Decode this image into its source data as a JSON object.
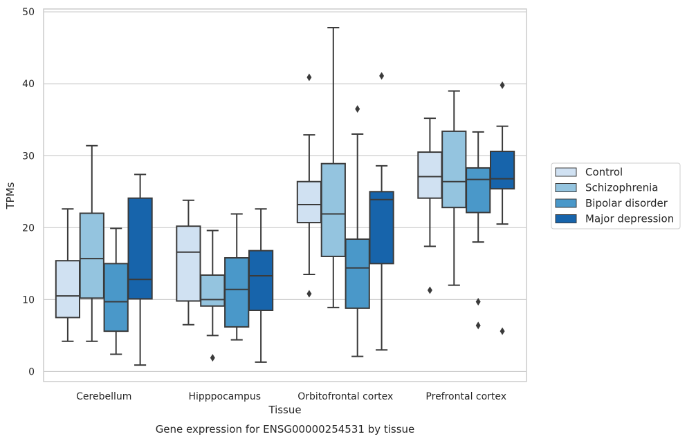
{
  "chart_data": {
    "type": "box",
    "title": "",
    "caption": "Gene expression for ENSG00000254531 by tissue",
    "xlabel": "Tissue",
    "ylabel": "TPMs",
    "ylim": [
      -1.4,
      50.4
    ],
    "yticks": [
      0,
      10,
      20,
      30,
      40,
      50
    ],
    "grid": true,
    "legend_position": "right",
    "categories": [
      "Cerebellum",
      "Hipppocampus",
      "Orbitofrontal cortex",
      "Prefrontal cortex"
    ],
    "series": [
      {
        "name": "Control",
        "color": "#d0e1f2",
        "boxes": [
          {
            "whisker_low": 4.2,
            "q1": 7.5,
            "median": 10.5,
            "q3": 15.4,
            "whisker_high": 22.6,
            "outliers": []
          },
          {
            "whisker_low": 6.5,
            "q1": 9.8,
            "median": 16.6,
            "q3": 20.2,
            "whisker_high": 23.8,
            "outliers": []
          },
          {
            "whisker_low": 13.5,
            "q1": 20.7,
            "median": 23.2,
            "q3": 26.4,
            "whisker_high": 32.9,
            "outliers": [
              10.8,
              40.9
            ]
          },
          {
            "whisker_low": 17.4,
            "q1": 24.1,
            "median": 27.1,
            "q3": 30.5,
            "whisker_high": 35.2,
            "outliers": [
              11.3
            ]
          }
        ]
      },
      {
        "name": "Schizophrenia",
        "color": "#94c4df",
        "boxes": [
          {
            "whisker_low": 4.2,
            "q1": 10.2,
            "median": 15.7,
            "q3": 22.0,
            "whisker_high": 31.4,
            "outliers": []
          },
          {
            "whisker_low": 5.0,
            "q1": 9.1,
            "median": 10.0,
            "q3": 13.4,
            "whisker_high": 19.6,
            "outliers": [
              1.9
            ]
          },
          {
            "whisker_low": 8.9,
            "q1": 16.0,
            "median": 21.9,
            "q3": 28.9,
            "whisker_high": 47.8,
            "outliers": []
          },
          {
            "whisker_low": 12.0,
            "q1": 22.8,
            "median": 26.4,
            "q3": 33.4,
            "whisker_high": 39.0,
            "outliers": []
          }
        ]
      },
      {
        "name": "Bipolar disorder",
        "color": "#4a98c9",
        "boxes": [
          {
            "whisker_low": 2.4,
            "q1": 5.6,
            "median": 9.7,
            "q3": 15.0,
            "whisker_high": 19.9,
            "outliers": []
          },
          {
            "whisker_low": 4.4,
            "q1": 6.2,
            "median": 11.4,
            "q3": 15.8,
            "whisker_high": 21.9,
            "outliers": []
          },
          {
            "whisker_low": 2.1,
            "q1": 8.8,
            "median": 14.4,
            "q3": 18.4,
            "whisker_high": 33.0,
            "outliers": [
              36.5
            ]
          },
          {
            "whisker_low": 18.0,
            "q1": 22.1,
            "median": 26.7,
            "q3": 28.3,
            "whisker_high": 33.3,
            "outliers": [
              6.4,
              9.7
            ]
          }
        ]
      },
      {
        "name": "Major depression",
        "color": "#1764ab",
        "boxes": [
          {
            "whisker_low": 0.9,
            "q1": 10.1,
            "median": 12.8,
            "q3": 24.1,
            "whisker_high": 27.4,
            "outliers": []
          },
          {
            "whisker_low": 1.3,
            "q1": 8.5,
            "median": 13.3,
            "q3": 16.8,
            "whisker_high": 22.6,
            "outliers": []
          },
          {
            "whisker_low": 3.0,
            "q1": 15.0,
            "median": 23.9,
            "q3": 25.0,
            "whisker_high": 28.6,
            "outliers": [
              41.1
            ]
          },
          {
            "whisker_low": 20.5,
            "q1": 25.4,
            "median": 26.8,
            "q3": 30.6,
            "whisker_high": 34.1,
            "outliers": [
              5.6,
              39.8
            ]
          }
        ]
      }
    ]
  }
}
